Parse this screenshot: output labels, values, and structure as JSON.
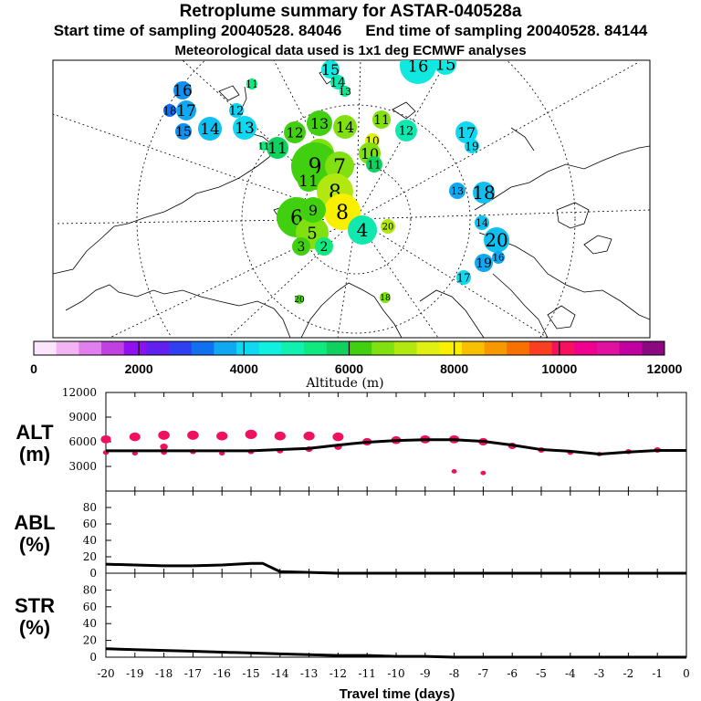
{
  "header": {
    "title": "Retroplume summary for ASTAR-040528a",
    "start_label": "Start time of sampling 20040528. 84046",
    "end_label": "End time of sampling 20040528. 84144",
    "met_label": "Meteorological data used is 1x1 deg ECMWF analyses"
  },
  "colorbar": {
    "ticks": [
      "0",
      "2000",
      "4000",
      "6000",
      "8000",
      "10000",
      "12000"
    ],
    "label": "Altitude (m)",
    "colors": [
      "#fce4fc",
      "#f2b4f2",
      "#e080ee",
      "#c040e0",
      "#9010f0",
      "#6020f0",
      "#3040f0",
      "#1070f0",
      "#10a8f0",
      "#10d8f0",
      "#10f0e0",
      "#10f0b0",
      "#10e880",
      "#10d060",
      "#40d010",
      "#80e010",
      "#b0e810",
      "#e0f010",
      "#f8f000",
      "#f8c000",
      "#f89800",
      "#f87000",
      "#f84020",
      "#f81060",
      "#f00090",
      "#e010a0",
      "#c000a0",
      "#8a0880"
    ]
  },
  "map_labels": [
    {
      "text": "16",
      "color": "#10e8e0"
    },
    {
      "text": "15",
      "color": "#10e8e0"
    },
    {
      "text": "15",
      "color": "#10e8e0"
    },
    {
      "text": "14",
      "color": "#10e8b0"
    },
    {
      "text": "13",
      "color": "#10e890"
    },
    {
      "text": "11",
      "color": "#10e880"
    },
    {
      "text": "16",
      "color": "#1090f0"
    },
    {
      "text": "18",
      "color": "#1070f0"
    },
    {
      "text": "17",
      "color": "#10a8f0"
    },
    {
      "text": "15",
      "color": "#1090f0"
    },
    {
      "text": "14",
      "color": "#10c0f0"
    },
    {
      "text": "12",
      "color": "#10d0f0"
    },
    {
      "text": "13",
      "color": "#10d8f0"
    },
    {
      "text": "11",
      "color": "#10d060"
    },
    {
      "text": "12",
      "color": "#40d010"
    },
    {
      "text": "13",
      "color": "#40d010"
    },
    {
      "text": "14",
      "color": "#80e010"
    },
    {
      "text": "10",
      "color": "#e0f010"
    },
    {
      "text": "11",
      "color": "#80e010"
    },
    {
      "text": "12",
      "color": "#10e8b0"
    },
    {
      "text": "17",
      "color": "#10d8f0"
    },
    {
      "text": "19",
      "color": "#10d8f0"
    },
    {
      "text": "10",
      "color": "#80e010"
    },
    {
      "text": "9",
      "color": "#40d010"
    },
    {
      "text": "7",
      "color": "#80e010"
    },
    {
      "text": "11",
      "color": "#40d010"
    },
    {
      "text": "10",
      "color": "#80e010"
    },
    {
      "text": "8",
      "color": "#b0e810"
    },
    {
      "text": "8",
      "color": "#f8f000"
    },
    {
      "text": "6",
      "color": "#40d010"
    },
    {
      "text": "5",
      "color": "#80e010"
    },
    {
      "text": "4",
      "color": "#10e8b0"
    },
    {
      "text": "3",
      "color": "#40d010"
    },
    {
      "text": "2",
      "color": "#10e880"
    },
    {
      "text": "9",
      "color": "#40d010"
    },
    {
      "text": "20",
      "color": "#b0e810"
    },
    {
      "text": "13",
      "color": "#10a8f0"
    },
    {
      "text": "18",
      "color": "#10c0f0"
    },
    {
      "text": "14",
      "color": "#10c0f0"
    },
    {
      "text": "20",
      "color": "#10c0f0"
    },
    {
      "text": "19",
      "color": "#10a8f0"
    },
    {
      "text": "16",
      "color": "#10a8f0"
    },
    {
      "text": "17",
      "color": "#10d8f0"
    },
    {
      "text": "20",
      "color": "#40d010"
    },
    {
      "text": "18",
      "color": "#80e010"
    },
    {
      "text": "11",
      "color": "#10e880"
    },
    {
      "text": "11",
      "color": "#10d060"
    }
  ],
  "chart_data": [
    {
      "type": "line",
      "name": "ALT",
      "title": "ALT",
      "ylabel": "(m)",
      "ylim": [
        0,
        12000
      ],
      "yticks": [
        "12000",
        "9000",
        "6000",
        "3000"
      ],
      "x": [
        -20,
        -19,
        -18,
        -17,
        -16,
        -15,
        -14,
        -13,
        -12,
        -11,
        -10,
        -9,
        -8,
        -7,
        -6,
        -5,
        -4,
        -3,
        -2,
        -1,
        0
      ],
      "values": [
        4900,
        4900,
        4900,
        4900,
        4900,
        4900,
        5050,
        5200,
        5600,
        5950,
        6150,
        6250,
        6250,
        6050,
        5600,
        5050,
        4850,
        4500,
        4750,
        4950,
        4950
      ],
      "dots": {
        "color": "#f01060",
        "x": [
          -20,
          -20,
          -19,
          -19,
          -18,
          -18,
          -18,
          -17,
          -17,
          -16,
          -16,
          -15,
          -15,
          -14,
          -14,
          -13,
          -13,
          -12,
          -12,
          -11,
          -10,
          -9,
          -8,
          -7,
          -6,
          -5,
          -4,
          -3,
          -2,
          -1,
          -8,
          -7
        ],
        "y": [
          4700,
          6300,
          4600,
          6600,
          4700,
          5400,
          6800,
          4800,
          6800,
          4600,
          6700,
          4800,
          6900,
          4900,
          6700,
          5100,
          6700,
          5400,
          6600,
          6000,
          6200,
          6300,
          6300,
          6000,
          5500,
          5000,
          4700,
          4500,
          4800,
          5000,
          2400,
          2200
        ]
      }
    },
    {
      "type": "line",
      "name": "ABL",
      "title": "ABL",
      "ylabel": "(%)",
      "ylim": [
        0,
        100
      ],
      "yticks": [
        "80",
        "60",
        "40",
        "20",
        "0"
      ],
      "x": [
        -20,
        -19,
        -18,
        -17,
        -16,
        -15,
        -14.6,
        -14,
        -13,
        -12,
        -11,
        -10,
        -9,
        -8,
        -7,
        -6,
        -5,
        -4,
        -3,
        -2,
        -1,
        0
      ],
      "values": [
        11,
        10,
        9,
        9,
        10,
        12,
        12,
        2,
        1,
        0,
        0,
        0,
        0,
        0,
        0,
        0,
        0,
        0,
        0,
        0,
        0,
        0
      ]
    },
    {
      "type": "line",
      "name": "STR",
      "title": "STR",
      "ylabel": "(%)",
      "ylim": [
        0,
        100
      ],
      "yticks": [
        "80",
        "60",
        "40",
        "20",
        "0"
      ],
      "x": [
        -20,
        -19,
        -18,
        -17,
        -16,
        -15,
        -14,
        -13,
        -12,
        -11,
        -10,
        -9,
        -8,
        -7,
        -6,
        -5,
        -4,
        -3,
        -2,
        -1,
        0
      ],
      "values": [
        10,
        9,
        8,
        7,
        6,
        5,
        4,
        3,
        2,
        2,
        1,
        1,
        0,
        0,
        0,
        0,
        0,
        0,
        0,
        0,
        0
      ],
      "xlabel": "Travel time (days)",
      "xticks": [
        "-20",
        "-19",
        "-18",
        "-17",
        "-16",
        "-15",
        "-14",
        "-13",
        "-12",
        "-11",
        "-10",
        "-9",
        "-8",
        "-7",
        "-6",
        "-5",
        "-4",
        "-3",
        "-2",
        "-1",
        "0"
      ]
    }
  ]
}
